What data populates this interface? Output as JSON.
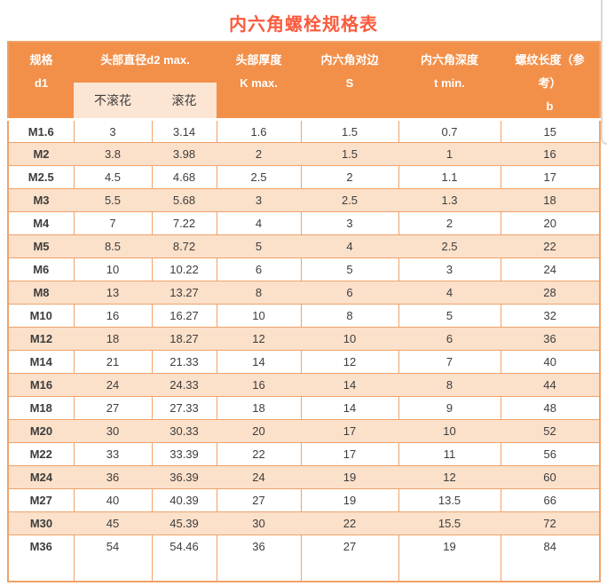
{
  "page": {
    "title": "内六角螺栓规格表"
  },
  "table": {
    "header": {
      "spec": [
        "规格",
        "d1"
      ],
      "head_diameter": "头部直径d2 max.",
      "sub_columns": [
        "不滚花",
        "滚花"
      ],
      "head_thickness": [
        "头部厚度",
        "K max."
      ],
      "hex_across_flats": [
        "内六角对边",
        "S"
      ],
      "hex_depth": [
        "内六角深度",
        "t min."
      ],
      "thread_length": [
        "螺纹长度（参",
        "考）",
        "b"
      ]
    },
    "rows": [
      [
        "M1.6",
        "3",
        "3.14",
        "1.6",
        "1.5",
        "0.7",
        "15"
      ],
      [
        "M2",
        "3.8",
        "3.98",
        "2",
        "1.5",
        "1",
        "16"
      ],
      [
        "M2.5",
        "4.5",
        "4.68",
        "2.5",
        "2",
        "1.1",
        "17"
      ],
      [
        "M3",
        "5.5",
        "5.68",
        "3",
        "2.5",
        "1.3",
        "18"
      ],
      [
        "M4",
        "7",
        "7.22",
        "4",
        "3",
        "2",
        "20"
      ],
      [
        "M5",
        "8.5",
        "8.72",
        "5",
        "4",
        "2.5",
        "22"
      ],
      [
        "M6",
        "10",
        "10.22",
        "6",
        "5",
        "3",
        "24"
      ],
      [
        "M8",
        "13",
        "13.27",
        "8",
        "6",
        "4",
        "28"
      ],
      [
        "M10",
        "16",
        "16.27",
        "10",
        "8",
        "5",
        "32"
      ],
      [
        "M12",
        "18",
        "18.27",
        "12",
        "10",
        "6",
        "36"
      ],
      [
        "M14",
        "21",
        "21.33",
        "14",
        "12",
        "7",
        "40"
      ],
      [
        "M16",
        "24",
        "24.33",
        "16",
        "14",
        "8",
        "44"
      ],
      [
        "M18",
        "27",
        "27.33",
        "18",
        "14",
        "9",
        "48"
      ],
      [
        "M20",
        "30",
        "30.33",
        "20",
        "17",
        "10",
        "52"
      ],
      [
        "M22",
        "33",
        "33.39",
        "22",
        "17",
        "11",
        "56"
      ],
      [
        "M24",
        "36",
        "36.39",
        "24",
        "19",
        "12",
        "60"
      ],
      [
        "M27",
        "40",
        "40.39",
        "27",
        "19",
        "13.5",
        "66"
      ],
      [
        "M30",
        "45",
        "45.39",
        "30",
        "22",
        "15.5",
        "72"
      ],
      [
        "M36",
        "54",
        "54.46",
        "36",
        "27",
        "19",
        "84"
      ]
    ]
  },
  "colors": {
    "title_red": "#fa5b3d",
    "header_orange": "#f2904a",
    "border_orange": "#f0a269",
    "row_peach": "#fbe0ca",
    "subheader_peach": "#fce5d3",
    "text_dark": "#3d3d3d",
    "header_text": "#ffffff",
    "widget_gray": "#d8d8d8"
  }
}
